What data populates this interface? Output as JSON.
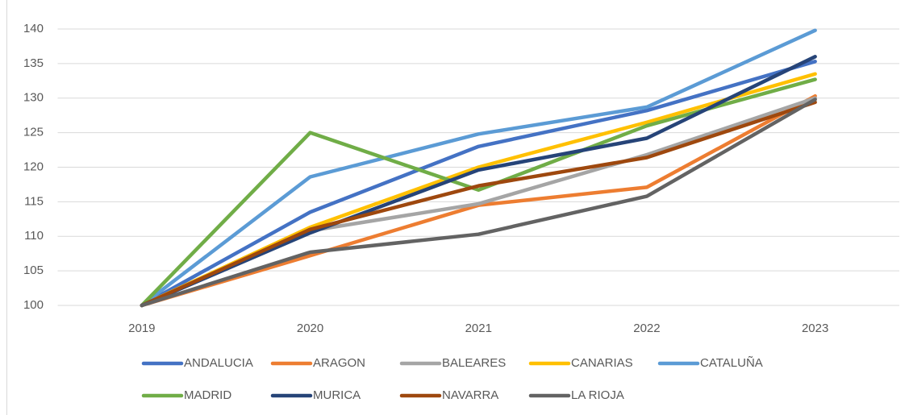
{
  "chart_data": {
    "type": "line",
    "categories": [
      "2019",
      "2020",
      "2021",
      "2022",
      "2023"
    ],
    "series": [
      {
        "name": "ANDALUCIA",
        "color": "#4472c4",
        "values": [
          100,
          113.5,
          123,
          128.2,
          135.3
        ]
      },
      {
        "name": "ARAGON",
        "color": "#ed7d31",
        "values": [
          100,
          107.2,
          114.5,
          117.1,
          130.3
        ]
      },
      {
        "name": "BALEARES",
        "color": "#a5a5a5",
        "values": [
          100,
          110.8,
          114.7,
          121.8,
          130
        ]
      },
      {
        "name": "CANARIAS",
        "color": "#ffc000",
        "values": [
          100,
          111.3,
          120,
          126.5,
          133.5
        ]
      },
      {
        "name": "CATALUÑA",
        "color": "#5b9bd5",
        "values": [
          100,
          118.6,
          124.8,
          128.7,
          139.8
        ]
      },
      {
        "name": "MADRID",
        "color": "#70ad47",
        "values": [
          100,
          125,
          116.7,
          126,
          132.7
        ]
      },
      {
        "name": "MURICA",
        "color": "#264478",
        "values": [
          100,
          110.5,
          119.6,
          124.2,
          136
        ]
      },
      {
        "name": "NAVARRA",
        "color": "#9e480e",
        "values": [
          100,
          111,
          117.3,
          121.4,
          129.4
        ]
      },
      {
        "name": "LA RIOJA",
        "color": "#636363",
        "values": [
          100,
          107.7,
          110.3,
          115.8,
          129.8
        ]
      }
    ],
    "ylim": [
      100,
      140
    ],
    "yticks": [
      100,
      105,
      110,
      115,
      120,
      125,
      130,
      135,
      140
    ],
    "grid": true,
    "legend": "bottom"
  }
}
